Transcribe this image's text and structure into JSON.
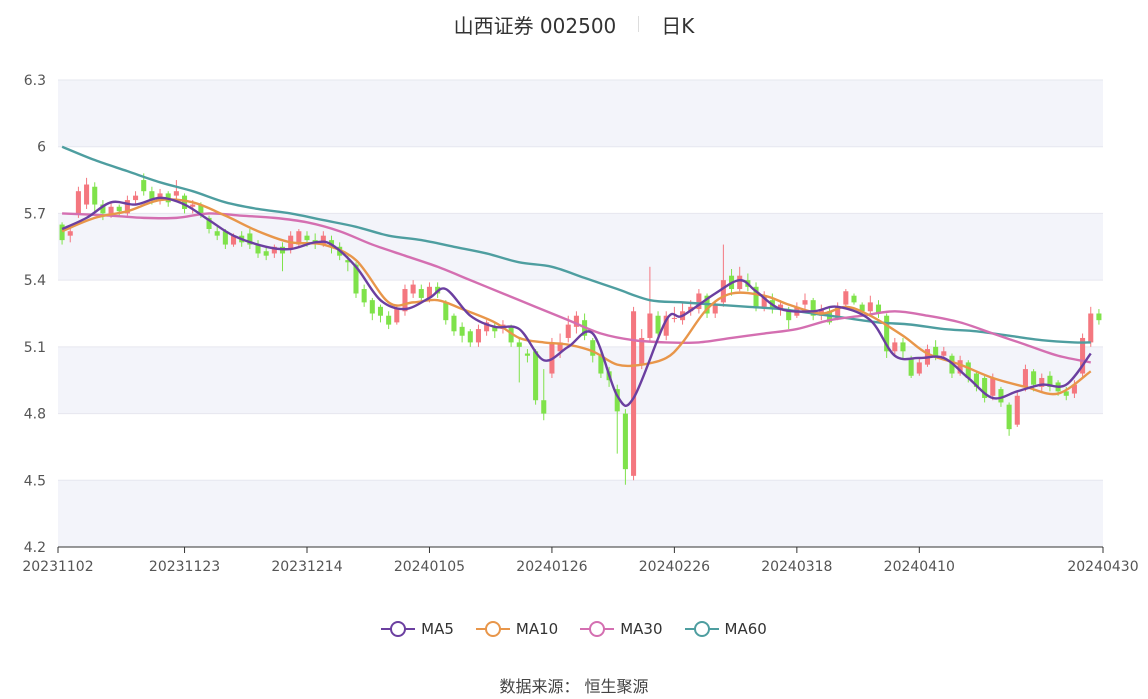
{
  "header": {
    "title": "山西证券 002500",
    "period": "日K"
  },
  "footer": {
    "source": "数据来源： 恒生聚源"
  },
  "colors": {
    "up": "#f4777f",
    "down": "#7fe24a",
    "ma5": "#6b3fa0",
    "ma10": "#e8964a",
    "ma30": "#d46fb1",
    "ma60": "#4e9ea0",
    "grid_band": "#f3f4fa",
    "grid_line": "#e6e7ef",
    "axis": "#555555"
  },
  "chart_data": {
    "type": "candlestick",
    "ylim": [
      4.2,
      6.3
    ],
    "yticks": [
      "4.2",
      "4.5",
      "4.8",
      "5.1",
      "5.4",
      "5.7",
      "6",
      "6.3"
    ],
    "xticks": [
      "20231102",
      "20231123",
      "20231214",
      "20240105",
      "20240126",
      "20240226",
      "20240318",
      "20240410",
      "20240430"
    ],
    "legend": [
      "MA5",
      "MA10",
      "MA30",
      "MA60"
    ],
    "candles": [
      [
        5.65,
        5.58,
        5.66,
        5.56
      ],
      [
        5.6,
        5.62,
        5.64,
        5.57
      ],
      [
        5.7,
        5.8,
        5.82,
        5.68
      ],
      [
        5.74,
        5.83,
        5.86,
        5.72
      ],
      [
        5.82,
        5.74,
        5.84,
        5.7
      ],
      [
        5.74,
        5.7,
        5.76,
        5.67
      ],
      [
        5.7,
        5.73,
        5.75,
        5.68
      ],
      [
        5.73,
        5.71,
        5.74,
        5.69
      ],
      [
        5.7,
        5.76,
        5.78,
        5.69
      ],
      [
        5.76,
        5.78,
        5.8,
        5.74
      ],
      [
        5.85,
        5.8,
        5.88,
        5.78
      ],
      [
        5.8,
        5.76,
        5.82,
        5.74
      ],
      [
        5.76,
        5.79,
        5.81,
        5.74
      ],
      [
        5.79,
        5.75,
        5.8,
        5.73
      ],
      [
        5.78,
        5.8,
        5.85,
        5.76
      ],
      [
        5.78,
        5.72,
        5.79,
        5.7
      ],
      [
        5.73,
        5.74,
        5.76,
        5.7
      ],
      [
        5.74,
        5.7,
        5.75,
        5.68
      ],
      [
        5.68,
        5.63,
        5.69,
        5.61
      ],
      [
        5.62,
        5.6,
        5.64,
        5.58
      ],
      [
        5.62,
        5.56,
        5.63,
        5.54
      ],
      [
        5.56,
        5.6,
        5.61,
        5.55
      ],
      [
        5.6,
        5.57,
        5.62,
        5.55
      ],
      [
        5.61,
        5.56,
        5.63,
        5.54
      ],
      [
        5.56,
        5.52,
        5.58,
        5.5
      ],
      [
        5.53,
        5.51,
        5.55,
        5.49
      ],
      [
        5.52,
        5.55,
        5.56,
        5.5
      ],
      [
        5.55,
        5.52,
        5.57,
        5.44
      ],
      [
        5.54,
        5.6,
        5.62,
        5.52
      ],
      [
        5.56,
        5.62,
        5.63,
        5.55
      ],
      [
        5.6,
        5.58,
        5.62,
        5.55
      ],
      [
        5.58,
        5.57,
        5.61,
        5.54
      ],
      [
        5.56,
        5.6,
        5.62,
        5.55
      ],
      [
        5.58,
        5.55,
        5.6,
        5.52
      ],
      [
        5.55,
        5.51,
        5.57,
        5.49
      ],
      [
        5.49,
        5.48,
        5.51,
        5.44
      ],
      [
        5.47,
        5.34,
        5.48,
        5.32
      ],
      [
        5.36,
        5.3,
        5.38,
        5.28
      ],
      [
        5.31,
        5.25,
        5.32,
        5.22
      ],
      [
        5.28,
        5.24,
        5.29,
        5.21
      ],
      [
        5.24,
        5.2,
        5.26,
        5.18
      ],
      [
        5.21,
        5.27,
        5.29,
        5.2
      ],
      [
        5.26,
        5.36,
        5.38,
        5.24
      ],
      [
        5.34,
        5.38,
        5.4,
        5.32
      ],
      [
        5.36,
        5.32,
        5.38,
        5.3
      ],
      [
        5.32,
        5.37,
        5.39,
        5.3
      ],
      [
        5.37,
        5.34,
        5.39,
        5.32
      ],
      [
        5.3,
        5.22,
        5.31,
        5.2
      ],
      [
        5.24,
        5.17,
        5.25,
        5.15
      ],
      [
        5.19,
        5.15,
        5.21,
        5.12
      ],
      [
        5.17,
        5.12,
        5.18,
        5.1
      ],
      [
        5.12,
        5.18,
        5.2,
        5.1
      ],
      [
        5.17,
        5.21,
        5.22,
        5.15
      ],
      [
        5.19,
        5.17,
        5.21,
        5.14
      ],
      [
        5.18,
        5.2,
        5.22,
        5.16
      ],
      [
        5.19,
        5.12,
        5.2,
        5.1
      ],
      [
        5.12,
        5.1,
        5.14,
        4.94
      ],
      [
        5.07,
        5.06,
        5.09,
        5.03
      ],
      [
        5.08,
        4.86,
        5.09,
        4.84
      ],
      [
        4.86,
        4.8,
        5.0,
        4.77
      ],
      [
        4.98,
        5.12,
        5.14,
        4.96
      ],
      [
        5.08,
        5.12,
        5.16,
        5.05
      ],
      [
        5.14,
        5.2,
        5.24,
        5.12
      ],
      [
        5.19,
        5.24,
        5.26,
        5.16
      ],
      [
        5.22,
        5.15,
        5.25,
        5.13
      ],
      [
        5.13,
        5.06,
        5.14,
        5.03
      ],
      [
        5.06,
        4.98,
        5.08,
        4.96
      ],
      [
        4.99,
        4.95,
        5.01,
        4.92
      ],
      [
        4.91,
        4.81,
        4.93,
        4.62
      ],
      [
        4.8,
        4.55,
        4.82,
        4.48
      ],
      [
        4.52,
        5.26,
        5.28,
        4.5
      ],
      [
        5.02,
        5.14,
        5.18,
        5.0
      ],
      [
        5.14,
        5.25,
        5.46,
        5.12
      ],
      [
        5.24,
        5.16,
        5.26,
        5.14
      ],
      [
        5.15,
        5.24,
        5.26,
        5.13
      ],
      [
        5.23,
        5.23,
        5.28,
        5.21
      ],
      [
        5.22,
        5.26,
        5.3,
        5.2
      ],
      [
        5.26,
        5.28,
        5.31,
        5.24
      ],
      [
        5.27,
        5.34,
        5.36,
        5.25
      ],
      [
        5.33,
        5.25,
        5.34,
        5.23
      ],
      [
        5.25,
        5.29,
        5.31,
        5.23
      ],
      [
        5.3,
        5.4,
        5.56,
        5.28
      ],
      [
        5.42,
        5.36,
        5.45,
        5.33
      ],
      [
        5.36,
        5.42,
        5.46,
        5.35
      ],
      [
        5.4,
        5.37,
        5.43,
        5.35
      ],
      [
        5.37,
        5.28,
        5.39,
        5.26
      ],
      [
        5.28,
        5.33,
        5.35,
        5.26
      ],
      [
        5.31,
        5.27,
        5.34,
        5.25
      ],
      [
        5.27,
        5.29,
        5.31,
        5.24
      ],
      [
        5.26,
        5.22,
        5.28,
        5.18
      ],
      [
        5.24,
        5.28,
        5.3,
        5.23
      ],
      [
        5.29,
        5.31,
        5.34,
        5.27
      ],
      [
        5.31,
        5.24,
        5.32,
        5.22
      ],
      [
        5.24,
        5.27,
        5.29,
        5.22
      ],
      [
        5.26,
        5.21,
        5.28,
        5.2
      ],
      [
        5.23,
        5.28,
        5.3,
        5.22
      ],
      [
        5.29,
        5.35,
        5.36,
        5.27
      ],
      [
        5.33,
        5.3,
        5.34,
        5.29
      ],
      [
        5.29,
        5.26,
        5.3,
        5.24
      ],
      [
        5.26,
        5.3,
        5.33,
        5.24
      ],
      [
        5.29,
        5.25,
        5.31,
        5.23
      ],
      [
        5.24,
        5.08,
        5.25,
        5.05
      ],
      [
        5.08,
        5.12,
        5.14,
        5.06
      ],
      [
        5.12,
        5.08,
        5.14,
        5.05
      ],
      [
        5.05,
        4.97,
        5.06,
        4.96
      ],
      [
        4.98,
        5.03,
        5.05,
        4.97
      ],
      [
        5.02,
        5.09,
        5.11,
        5.01
      ],
      [
        5.1,
        5.06,
        5.13,
        5.04
      ],
      [
        5.06,
        5.08,
        5.1,
        5.05
      ],
      [
        5.06,
        4.98,
        5.07,
        4.96
      ],
      [
        4.98,
        5.04,
        5.06,
        4.97
      ],
      [
        5.03,
        4.96,
        5.04,
        4.94
      ],
      [
        4.98,
        4.92,
        4.99,
        4.9
      ],
      [
        4.96,
        4.87,
        4.97,
        4.85
      ],
      [
        4.88,
        4.96,
        4.98,
        4.86
      ],
      [
        4.91,
        4.85,
        4.92,
        4.83
      ],
      [
        4.84,
        4.73,
        4.85,
        4.7
      ],
      [
        4.75,
        4.88,
        4.9,
        4.74
      ],
      [
        4.92,
        5.0,
        5.02,
        4.9
      ],
      [
        4.99,
        4.93,
        5.0,
        4.9
      ],
      [
        4.92,
        4.96,
        4.98,
        4.9
      ],
      [
        4.97,
        4.92,
        4.99,
        4.9
      ],
      [
        4.94,
        4.9,
        4.95,
        4.88
      ],
      [
        4.9,
        4.88,
        4.92,
        4.86
      ],
      [
        4.89,
        4.93,
        4.95,
        4.87
      ],
      [
        4.98,
        5.14,
        5.16,
        4.96
      ],
      [
        5.12,
        5.25,
        5.28,
        5.1
      ],
      [
        5.25,
        5.22,
        5.27,
        5.2
      ]
    ],
    "ma5": [
      [
        0,
        5.63
      ],
      [
        3,
        5.68
      ],
      [
        6,
        5.75
      ],
      [
        9,
        5.74
      ],
      [
        12,
        5.77
      ],
      [
        15,
        5.74
      ],
      [
        18,
        5.67
      ],
      [
        21,
        5.6
      ],
      [
        25,
        5.55
      ],
      [
        28,
        5.54
      ],
      [
        31,
        5.57
      ],
      [
        33,
        5.56
      ],
      [
        36,
        5.46
      ],
      [
        39,
        5.31
      ],
      [
        42,
        5.27
      ],
      [
        45,
        5.32
      ],
      [
        47,
        5.36
      ],
      [
        50,
        5.24
      ],
      [
        53,
        5.19
      ],
      [
        56,
        5.18
      ],
      [
        59,
        5.04
      ],
      [
        62,
        5.1
      ],
      [
        65,
        5.16
      ],
      [
        68,
        4.88
      ],
      [
        70,
        4.87
      ],
      [
        74,
        5.22
      ],
      [
        76,
        5.24
      ],
      [
        80,
        5.34
      ],
      [
        83,
        5.4
      ],
      [
        85,
        5.35
      ],
      [
        88,
        5.27
      ],
      [
        92,
        5.26
      ],
      [
        95,
        5.28
      ],
      [
        99,
        5.22
      ],
      [
        102,
        5.06
      ],
      [
        105,
        5.05
      ],
      [
        108,
        5.05
      ],
      [
        111,
        4.96
      ],
      [
        114,
        4.87
      ],
      [
        117,
        4.9
      ],
      [
        120,
        4.93
      ],
      [
        123,
        4.93
      ],
      [
        126,
        5.07
      ]
    ],
    "ma10": [
      [
        0,
        5.62
      ],
      [
        4,
        5.68
      ],
      [
        8,
        5.71
      ],
      [
        12,
        5.76
      ],
      [
        16,
        5.75
      ],
      [
        20,
        5.69
      ],
      [
        24,
        5.62
      ],
      [
        28,
        5.57
      ],
      [
        32,
        5.56
      ],
      [
        36,
        5.49
      ],
      [
        40,
        5.3
      ],
      [
        43,
        5.3
      ],
      [
        46,
        5.31
      ],
      [
        49,
        5.27
      ],
      [
        53,
        5.21
      ],
      [
        56,
        5.14
      ],
      [
        59,
        5.12
      ],
      [
        62,
        5.11
      ],
      [
        65,
        5.08
      ],
      [
        68,
        5.02
      ],
      [
        71,
        5.02
      ],
      [
        74,
        5.05
      ],
      [
        76,
        5.12
      ],
      [
        79,
        5.27
      ],
      [
        82,
        5.34
      ],
      [
        86,
        5.33
      ],
      [
        89,
        5.29
      ],
      [
        93,
        5.25
      ],
      [
        96,
        5.28
      ],
      [
        99,
        5.24
      ],
      [
        103,
        5.15
      ],
      [
        106,
        5.07
      ],
      [
        110,
        5.02
      ],
      [
        114,
        4.96
      ],
      [
        118,
        4.92
      ],
      [
        122,
        4.89
      ],
      [
        126,
        4.99
      ]
    ],
    "ma30": [
      [
        0,
        5.7
      ],
      [
        6,
        5.69
      ],
      [
        10,
        5.68
      ],
      [
        14,
        5.68
      ],
      [
        18,
        5.7
      ],
      [
        22,
        5.69
      ],
      [
        26,
        5.68
      ],
      [
        30,
        5.66
      ],
      [
        34,
        5.62
      ],
      [
        38,
        5.56
      ],
      [
        42,
        5.51
      ],
      [
        46,
        5.46
      ],
      [
        50,
        5.4
      ],
      [
        54,
        5.34
      ],
      [
        58,
        5.28
      ],
      [
        62,
        5.22
      ],
      [
        66,
        5.16
      ],
      [
        70,
        5.13
      ],
      [
        74,
        5.12
      ],
      [
        78,
        5.12
      ],
      [
        82,
        5.14
      ],
      [
        86,
        5.16
      ],
      [
        90,
        5.18
      ],
      [
        94,
        5.22
      ],
      [
        98,
        5.24
      ],
      [
        102,
        5.26
      ],
      [
        106,
        5.24
      ],
      [
        110,
        5.21
      ],
      [
        114,
        5.16
      ],
      [
        118,
        5.11
      ],
      [
        122,
        5.06
      ],
      [
        126,
        5.03
      ]
    ],
    "ma60": [
      [
        0,
        6.0
      ],
      [
        4,
        5.94
      ],
      [
        8,
        5.89
      ],
      [
        12,
        5.84
      ],
      [
        16,
        5.8
      ],
      [
        20,
        5.75
      ],
      [
        24,
        5.72
      ],
      [
        28,
        5.7
      ],
      [
        32,
        5.67
      ],
      [
        36,
        5.64
      ],
      [
        40,
        5.6
      ],
      [
        44,
        5.58
      ],
      [
        48,
        5.55
      ],
      [
        52,
        5.52
      ],
      [
        56,
        5.48
      ],
      [
        60,
        5.46
      ],
      [
        64,
        5.41
      ],
      [
        68,
        5.36
      ],
      [
        72,
        5.31
      ],
      [
        76,
        5.3
      ],
      [
        80,
        5.29
      ],
      [
        84,
        5.28
      ],
      [
        88,
        5.27
      ],
      [
        92,
        5.25
      ],
      [
        96,
        5.23
      ],
      [
        100,
        5.21
      ],
      [
        104,
        5.2
      ],
      [
        108,
        5.18
      ],
      [
        112,
        5.17
      ],
      [
        116,
        5.15
      ],
      [
        120,
        5.13
      ],
      [
        124,
        5.12
      ],
      [
        126,
        5.12
      ]
    ]
  }
}
